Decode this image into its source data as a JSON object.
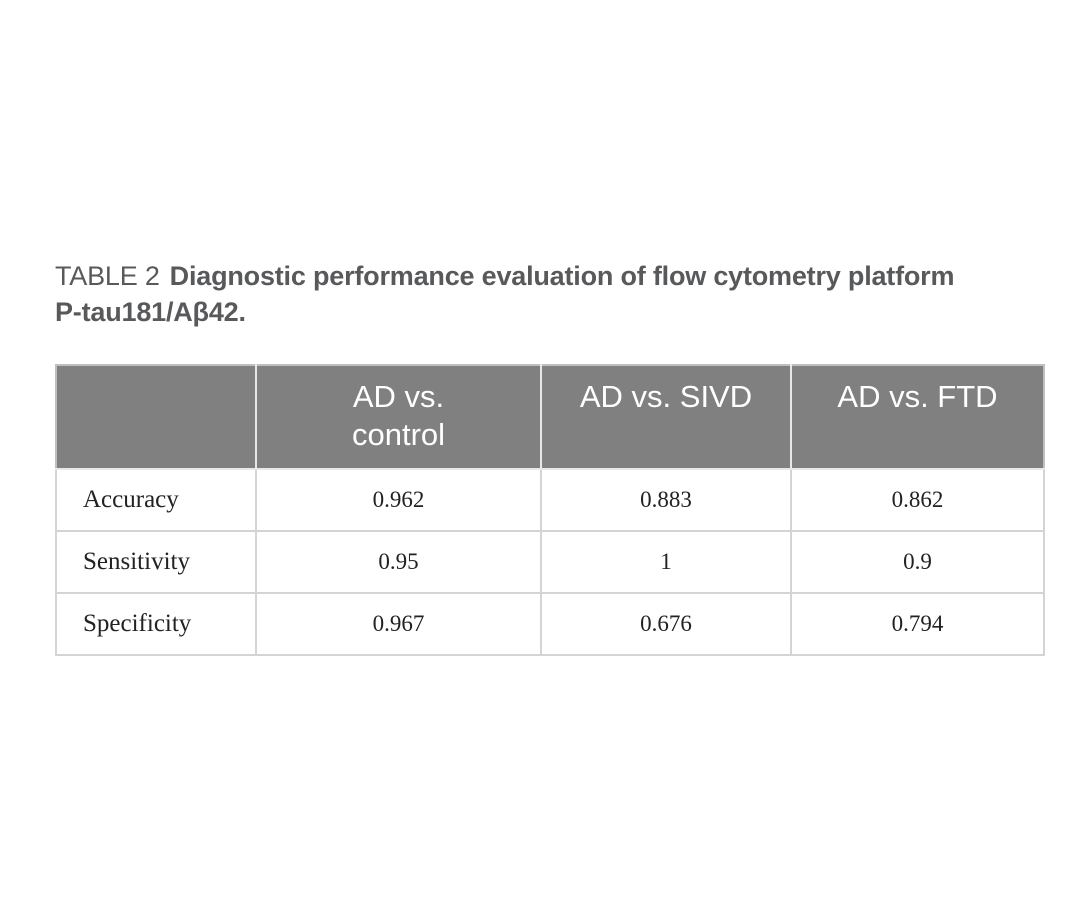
{
  "caption": {
    "label": "TABLE 2",
    "title": "Diagnostic performance evaluation of flow cytometry platform",
    "subtitle": "P-tau181/Aβ42."
  },
  "table": {
    "header": {
      "col1_line1": "AD vs.",
      "col1_line2": "control",
      "col2": "AD vs. SIVD",
      "col3": "AD vs. FTD"
    },
    "rows": [
      {
        "label": "Accuracy",
        "c1": "0.962",
        "c2": "0.883",
        "c3": "0.862"
      },
      {
        "label": "Sensitivity",
        "c1": "0.95",
        "c2": "1",
        "c3": "0.9"
      },
      {
        "label": "Specificity",
        "c1": "0.967",
        "c2": "0.676",
        "c3": "0.794"
      }
    ]
  },
  "colors": {
    "header_bg": "#808080",
    "header_text": "#ffffff",
    "caption_text": "#58595b",
    "grid_line": "#d4d4d4"
  }
}
